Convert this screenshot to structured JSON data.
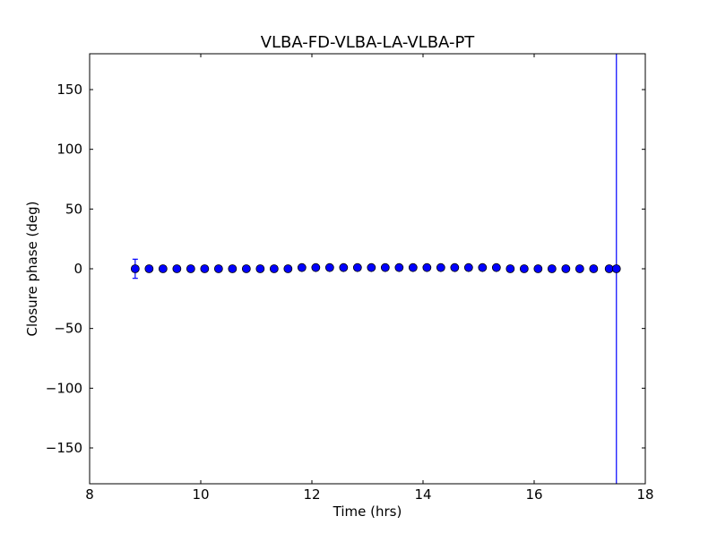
{
  "chart_data": {
    "type": "scatter",
    "title": "VLBA-FD-VLBA-LA-VLBA-PT",
    "xlabel": "Time (hrs)",
    "ylabel": "Closure phase (deg)",
    "xlim": [
      8,
      18
    ],
    "ylim": [
      -180,
      180
    ],
    "xticks": [
      8,
      10,
      12,
      14,
      16,
      18
    ],
    "xtick_labels": [
      "8",
      "10",
      "12",
      "14",
      "16",
      "18"
    ],
    "yticks": [
      -150,
      -100,
      -50,
      0,
      50,
      100,
      150
    ],
    "ytick_labels": [
      "−150",
      "−100",
      "−50",
      "0",
      "50",
      "100",
      "150"
    ],
    "grid": false,
    "marker_color": "#0000ff",
    "errorbar_color": "#0000ff",
    "points": [
      {
        "x": 8.82,
        "y": 0,
        "yerr": 8
      },
      {
        "x": 9.07,
        "y": 0,
        "yerr": 0.5
      },
      {
        "x": 9.32,
        "y": 0,
        "yerr": 0.5
      },
      {
        "x": 9.57,
        "y": 0,
        "yerr": 0.5
      },
      {
        "x": 9.82,
        "y": 0,
        "yerr": 0.5
      },
      {
        "x": 10.07,
        "y": 0,
        "yerr": 0.5
      },
      {
        "x": 10.32,
        "y": 0,
        "yerr": 0.5
      },
      {
        "x": 10.57,
        "y": 0,
        "yerr": 0.5
      },
      {
        "x": 10.82,
        "y": 0,
        "yerr": 0.5
      },
      {
        "x": 11.07,
        "y": 0,
        "yerr": 0.5
      },
      {
        "x": 11.32,
        "y": 0,
        "yerr": 0.5
      },
      {
        "x": 11.57,
        "y": 0,
        "yerr": 0.5
      },
      {
        "x": 11.82,
        "y": 1,
        "yerr": 0.5
      },
      {
        "x": 12.07,
        "y": 1,
        "yerr": 0.5
      },
      {
        "x": 12.32,
        "y": 1,
        "yerr": 0.5
      },
      {
        "x": 12.57,
        "y": 1,
        "yerr": 0.5
      },
      {
        "x": 12.82,
        "y": 1,
        "yerr": 0.5
      },
      {
        "x": 13.07,
        "y": 1,
        "yerr": 0.5
      },
      {
        "x": 13.32,
        "y": 1,
        "yerr": 0.5
      },
      {
        "x": 13.57,
        "y": 1,
        "yerr": 0.5
      },
      {
        "x": 13.82,
        "y": 1,
        "yerr": 0.5
      },
      {
        "x": 14.07,
        "y": 1,
        "yerr": 0.5
      },
      {
        "x": 14.32,
        "y": 1,
        "yerr": 0.5
      },
      {
        "x": 14.57,
        "y": 1,
        "yerr": 0.5
      },
      {
        "x": 14.82,
        "y": 1,
        "yerr": 0.5
      },
      {
        "x": 15.07,
        "y": 1,
        "yerr": 0.5
      },
      {
        "x": 15.32,
        "y": 1,
        "yerr": 0.5
      },
      {
        "x": 15.57,
        "y": 0,
        "yerr": 0.5
      },
      {
        "x": 15.82,
        "y": 0,
        "yerr": 0.5
      },
      {
        "x": 16.07,
        "y": 0,
        "yerr": 0.5
      },
      {
        "x": 16.32,
        "y": 0,
        "yerr": 0.5
      },
      {
        "x": 16.57,
        "y": 0,
        "yerr": 0.5
      },
      {
        "x": 16.82,
        "y": 0,
        "yerr": 0.5
      },
      {
        "x": 17.07,
        "y": 0,
        "yerr": 0.5
      },
      {
        "x": 17.35,
        "y": 0,
        "yerr": 0.5
      },
      {
        "x": 17.48,
        "y": 0,
        "yerr": 180
      }
    ]
  }
}
